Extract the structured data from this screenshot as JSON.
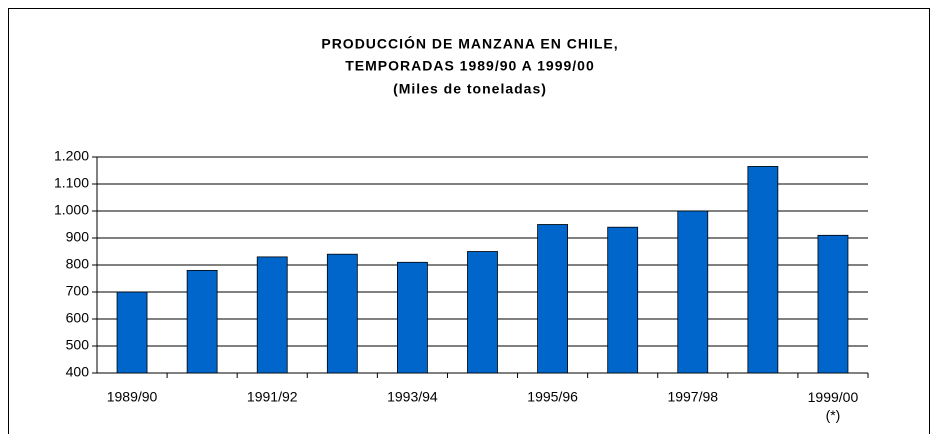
{
  "chart_data": {
    "type": "bar",
    "title": [
      "PRODUCCIÓN DE MANZANA EN CHILE,",
      "TEMPORADAS 1989/90 A 1999/00",
      "(Miles de toneladas)"
    ],
    "categories": [
      "1989/90",
      null,
      "1991/92",
      null,
      "1993/94",
      null,
      "1995/96",
      null,
      "1997/98",
      null,
      "1999/00\n(*)"
    ],
    "values": [
      700,
      780,
      830,
      840,
      810,
      850,
      950,
      940,
      1000,
      1165,
      910
    ],
    "color": "#0066cc",
    "ylim": [
      400,
      1200
    ],
    "yticks": [
      400,
      500,
      600,
      700,
      800,
      900,
      {
        "value": 1000,
        "label": "1.000"
      },
      {
        "value": 1100,
        "label": "1.100"
      },
      {
        "value": 1200,
        "label": "1.200"
      }
    ],
    "grid": true
  }
}
